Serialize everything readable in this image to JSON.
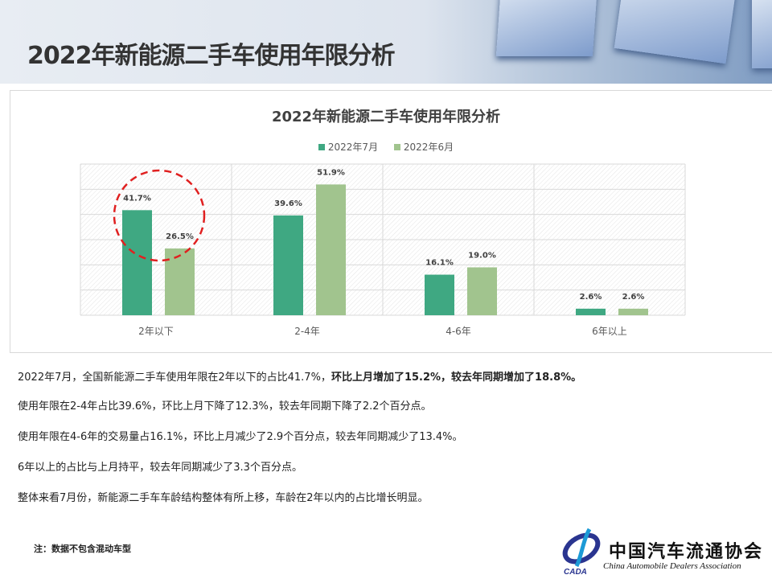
{
  "header": {
    "title": "2022年新能源二手车使用年限分析"
  },
  "chart_data": {
    "type": "bar",
    "title": "2022年新能源二手车使用年限分析",
    "categories": [
      "2年以下",
      "2-4年",
      "4-6年",
      "6年以上"
    ],
    "series": [
      {
        "name": "2022年7月",
        "values": [
          41.7,
          39.6,
          16.1,
          2.6
        ],
        "labels": [
          "41.7%",
          "39.6%",
          "16.1%",
          "2.6%"
        ],
        "color": "#3fa882"
      },
      {
        "name": "2022年6月",
        "values": [
          26.5,
          51.9,
          19.0,
          2.6
        ],
        "labels": [
          "26.5%",
          "51.9%",
          "19.0%",
          "2.6%"
        ],
        "color": "#a1c48e"
      }
    ],
    "ylim": [
      0,
      60
    ],
    "grid": true,
    "legend": "top",
    "annotation": {
      "type": "dashed-circle",
      "category": "2年以下",
      "color": "#e02020"
    }
  },
  "paragraphs": [
    {
      "normal": "2022年7月，全国新能源二手车使用年限在2年以下的占比41.7%，",
      "bold": "环比上月增加了15.2%，较去年同期增加了18.8%。"
    },
    {
      "normal": "使用年限在2-4年占比39.6%，环比上月下降了12.3%，较去年同期下降了2.2个百分点。",
      "bold": ""
    },
    {
      "normal": "使用年限在4-6年的交易量占16.1%，环比上月减少了2.9个百分点，较去年同期减少了13.4%。",
      "bold": ""
    },
    {
      "normal": "6年以上的占比与上月持平，较去年同期减少了3.3个百分点。",
      "bold": ""
    },
    {
      "normal": "整体来看7月份，新能源二手车车龄结构整体有所上移，车龄在2年以内的占比增长明显。",
      "bold": ""
    }
  ],
  "note": "注：数据不包含混动车型",
  "logo": {
    "cn": "中国汽车流通协会",
    "en": "China Automobile Dealers Association",
    "abbr": "CADA"
  }
}
